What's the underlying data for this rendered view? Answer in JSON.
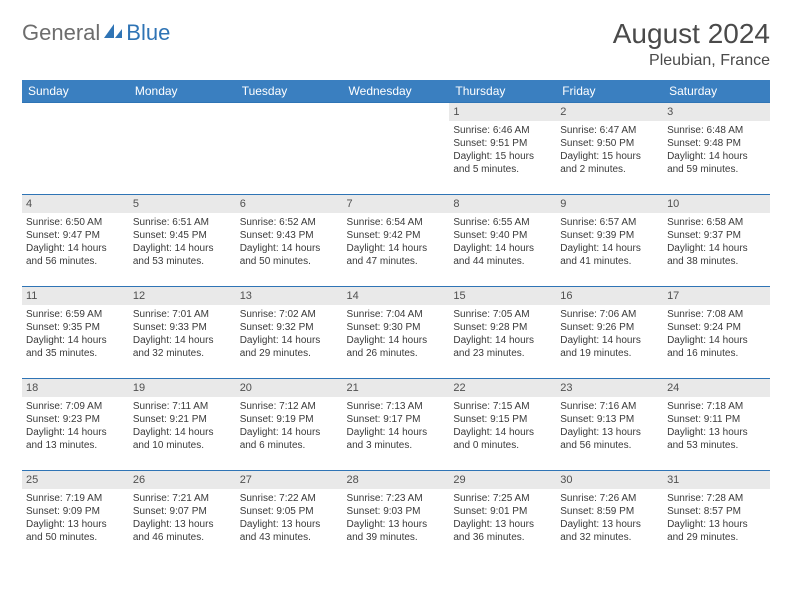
{
  "logo": {
    "word1": "General",
    "word2": "Blue"
  },
  "title": "August 2024",
  "location": "Pleubian, France",
  "header_color": "#3a7fc0",
  "border_color": "#2f74b5",
  "daynum_bg": "#e9e9e9",
  "weekdays": [
    "Sunday",
    "Monday",
    "Tuesday",
    "Wednesday",
    "Thursday",
    "Friday",
    "Saturday"
  ],
  "weeks": [
    [
      null,
      null,
      null,
      null,
      {
        "n": "1",
        "sr": "Sunrise: 6:46 AM",
        "ss": "Sunset: 9:51 PM",
        "dl": "Daylight: 15 hours and 5 minutes."
      },
      {
        "n": "2",
        "sr": "Sunrise: 6:47 AM",
        "ss": "Sunset: 9:50 PM",
        "dl": "Daylight: 15 hours and 2 minutes."
      },
      {
        "n": "3",
        "sr": "Sunrise: 6:48 AM",
        "ss": "Sunset: 9:48 PM",
        "dl": "Daylight: 14 hours and 59 minutes."
      }
    ],
    [
      {
        "n": "4",
        "sr": "Sunrise: 6:50 AM",
        "ss": "Sunset: 9:47 PM",
        "dl": "Daylight: 14 hours and 56 minutes."
      },
      {
        "n": "5",
        "sr": "Sunrise: 6:51 AM",
        "ss": "Sunset: 9:45 PM",
        "dl": "Daylight: 14 hours and 53 minutes."
      },
      {
        "n": "6",
        "sr": "Sunrise: 6:52 AM",
        "ss": "Sunset: 9:43 PM",
        "dl": "Daylight: 14 hours and 50 minutes."
      },
      {
        "n": "7",
        "sr": "Sunrise: 6:54 AM",
        "ss": "Sunset: 9:42 PM",
        "dl": "Daylight: 14 hours and 47 minutes."
      },
      {
        "n": "8",
        "sr": "Sunrise: 6:55 AM",
        "ss": "Sunset: 9:40 PM",
        "dl": "Daylight: 14 hours and 44 minutes."
      },
      {
        "n": "9",
        "sr": "Sunrise: 6:57 AM",
        "ss": "Sunset: 9:39 PM",
        "dl": "Daylight: 14 hours and 41 minutes."
      },
      {
        "n": "10",
        "sr": "Sunrise: 6:58 AM",
        "ss": "Sunset: 9:37 PM",
        "dl": "Daylight: 14 hours and 38 minutes."
      }
    ],
    [
      {
        "n": "11",
        "sr": "Sunrise: 6:59 AM",
        "ss": "Sunset: 9:35 PM",
        "dl": "Daylight: 14 hours and 35 minutes."
      },
      {
        "n": "12",
        "sr": "Sunrise: 7:01 AM",
        "ss": "Sunset: 9:33 PM",
        "dl": "Daylight: 14 hours and 32 minutes."
      },
      {
        "n": "13",
        "sr": "Sunrise: 7:02 AM",
        "ss": "Sunset: 9:32 PM",
        "dl": "Daylight: 14 hours and 29 minutes."
      },
      {
        "n": "14",
        "sr": "Sunrise: 7:04 AM",
        "ss": "Sunset: 9:30 PM",
        "dl": "Daylight: 14 hours and 26 minutes."
      },
      {
        "n": "15",
        "sr": "Sunrise: 7:05 AM",
        "ss": "Sunset: 9:28 PM",
        "dl": "Daylight: 14 hours and 23 minutes."
      },
      {
        "n": "16",
        "sr": "Sunrise: 7:06 AM",
        "ss": "Sunset: 9:26 PM",
        "dl": "Daylight: 14 hours and 19 minutes."
      },
      {
        "n": "17",
        "sr": "Sunrise: 7:08 AM",
        "ss": "Sunset: 9:24 PM",
        "dl": "Daylight: 14 hours and 16 minutes."
      }
    ],
    [
      {
        "n": "18",
        "sr": "Sunrise: 7:09 AM",
        "ss": "Sunset: 9:23 PM",
        "dl": "Daylight: 14 hours and 13 minutes."
      },
      {
        "n": "19",
        "sr": "Sunrise: 7:11 AM",
        "ss": "Sunset: 9:21 PM",
        "dl": "Daylight: 14 hours and 10 minutes."
      },
      {
        "n": "20",
        "sr": "Sunrise: 7:12 AM",
        "ss": "Sunset: 9:19 PM",
        "dl": "Daylight: 14 hours and 6 minutes."
      },
      {
        "n": "21",
        "sr": "Sunrise: 7:13 AM",
        "ss": "Sunset: 9:17 PM",
        "dl": "Daylight: 14 hours and 3 minutes."
      },
      {
        "n": "22",
        "sr": "Sunrise: 7:15 AM",
        "ss": "Sunset: 9:15 PM",
        "dl": "Daylight: 14 hours and 0 minutes."
      },
      {
        "n": "23",
        "sr": "Sunrise: 7:16 AM",
        "ss": "Sunset: 9:13 PM",
        "dl": "Daylight: 13 hours and 56 minutes."
      },
      {
        "n": "24",
        "sr": "Sunrise: 7:18 AM",
        "ss": "Sunset: 9:11 PM",
        "dl": "Daylight: 13 hours and 53 minutes."
      }
    ],
    [
      {
        "n": "25",
        "sr": "Sunrise: 7:19 AM",
        "ss": "Sunset: 9:09 PM",
        "dl": "Daylight: 13 hours and 50 minutes."
      },
      {
        "n": "26",
        "sr": "Sunrise: 7:21 AM",
        "ss": "Sunset: 9:07 PM",
        "dl": "Daylight: 13 hours and 46 minutes."
      },
      {
        "n": "27",
        "sr": "Sunrise: 7:22 AM",
        "ss": "Sunset: 9:05 PM",
        "dl": "Daylight: 13 hours and 43 minutes."
      },
      {
        "n": "28",
        "sr": "Sunrise: 7:23 AM",
        "ss": "Sunset: 9:03 PM",
        "dl": "Daylight: 13 hours and 39 minutes."
      },
      {
        "n": "29",
        "sr": "Sunrise: 7:25 AM",
        "ss": "Sunset: 9:01 PM",
        "dl": "Daylight: 13 hours and 36 minutes."
      },
      {
        "n": "30",
        "sr": "Sunrise: 7:26 AM",
        "ss": "Sunset: 8:59 PM",
        "dl": "Daylight: 13 hours and 32 minutes."
      },
      {
        "n": "31",
        "sr": "Sunrise: 7:28 AM",
        "ss": "Sunset: 8:57 PM",
        "dl": "Daylight: 13 hours and 29 minutes."
      }
    ]
  ]
}
